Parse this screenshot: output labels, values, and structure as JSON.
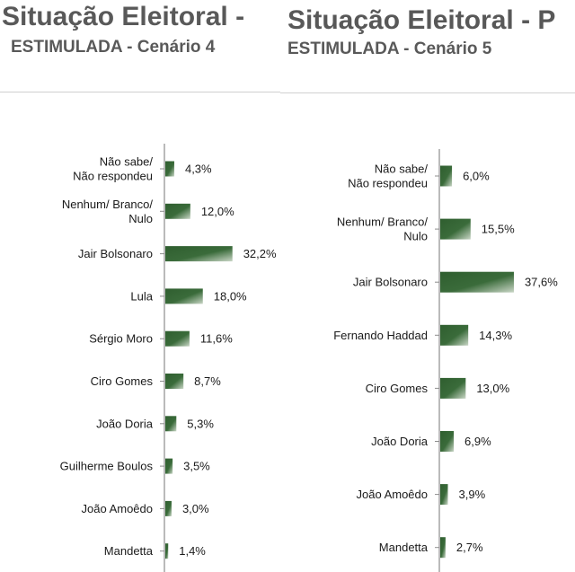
{
  "chart_data": [
    {
      "type": "bar",
      "orientation": "horizontal",
      "title": "Situação Eleitoral -",
      "subtitle": "ESTIMULADA - Cenário 4",
      "categories": [
        [
          "Não sabe/",
          "Não respondeu"
        ],
        [
          "Nenhum/ Branco/",
          "Nulo"
        ],
        [
          "Jair Bolsonaro"
        ],
        [
          "Lula"
        ],
        [
          "Sérgio Moro"
        ],
        [
          "Ciro Gomes"
        ],
        [
          "João Doria"
        ],
        [
          "Guilherme Boulos"
        ],
        [
          "João Amoêdo"
        ],
        [
          "Mandetta"
        ]
      ],
      "values": [
        4.3,
        12.0,
        32.2,
        18.0,
        11.6,
        8.7,
        5.3,
        3.5,
        3.0,
        1.4
      ],
      "value_labels": [
        "4,3%",
        "12,0%",
        "32,2%",
        "18,0%",
        "11,6%",
        "8,7%",
        "5,3%",
        "3,5%",
        "3,0%",
        "1,4%"
      ],
      "bar_color": "#3a6b3a"
    },
    {
      "type": "bar",
      "orientation": "horizontal",
      "title": "Situação Eleitoral - P",
      "subtitle": "ESTIMULADA - Cenário 5",
      "categories": [
        [
          "Não sabe/",
          "Não respondeu"
        ],
        [
          "Nenhum/ Branco/",
          "Nulo"
        ],
        [
          "Jair Bolsonaro"
        ],
        [
          "Fernando Haddad"
        ],
        [
          "Ciro Gomes"
        ],
        [
          "João Doria"
        ],
        [
          "João Amoêdo"
        ],
        [
          "Mandetta"
        ]
      ],
      "values": [
        6.0,
        15.5,
        37.6,
        14.3,
        13.0,
        6.9,
        3.9,
        2.7
      ],
      "value_labels": [
        "6,0%",
        "15,5%",
        "37,6%",
        "14,3%",
        "13,0%",
        "6,9%",
        "3,9%",
        "2,7%"
      ],
      "bar_color": "#3a6b3a"
    }
  ]
}
